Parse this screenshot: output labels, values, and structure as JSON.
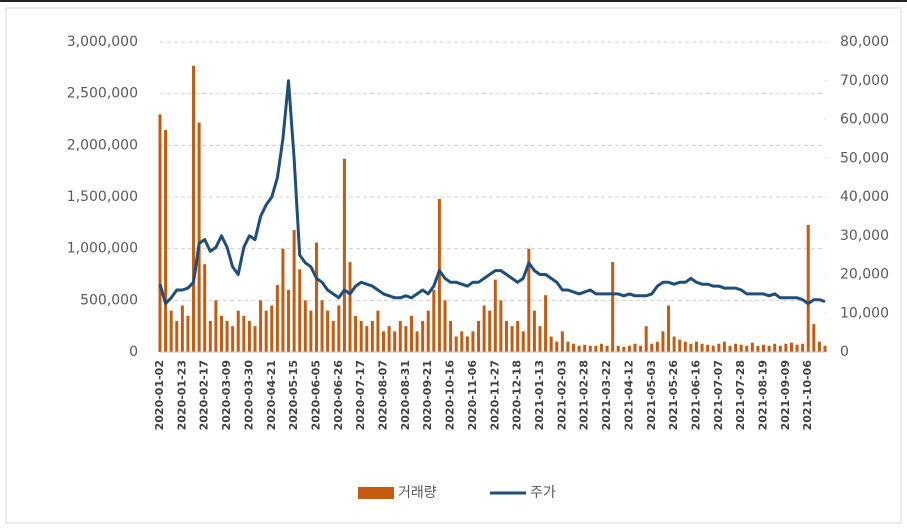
{
  "chart_data": {
    "type": "bar_line",
    "categories": [
      "2020-01-02",
      null,
      null,
      null,
      "2020-01-23",
      null,
      null,
      null,
      "2020-02-17",
      null,
      null,
      null,
      "2020-03-09",
      null,
      null,
      null,
      "2020-03-30",
      null,
      null,
      null,
      "2020-04-21",
      null,
      null,
      null,
      "2020-05-15",
      null,
      null,
      null,
      "2020-06-05",
      null,
      null,
      null,
      "2020-06-26",
      null,
      null,
      null,
      "2020-07-17",
      null,
      null,
      null,
      "2020-08-07",
      null,
      null,
      null,
      "2020-08-31",
      null,
      null,
      null,
      "2020-09-21",
      null,
      null,
      null,
      "2020-10-16",
      null,
      null,
      null,
      "2020-11-06",
      null,
      null,
      null,
      "2020-11-27",
      null,
      null,
      null,
      "2020-12-18",
      null,
      null,
      null,
      "2021-01-13",
      null,
      null,
      null,
      "2021-02-03",
      null,
      null,
      null,
      "2021-02-28",
      null,
      null,
      null,
      "2021-03-22",
      null,
      null,
      null,
      "2021-04-12",
      null,
      null,
      null,
      "2021-05-03",
      null,
      null,
      null,
      "2021-05-26",
      null,
      null,
      null,
      "2021-06-16",
      null,
      null,
      null,
      "2021-07-07",
      null,
      null,
      null,
      "2021-07-28",
      null,
      null,
      null,
      "2021-08-19",
      null,
      null,
      null,
      "2021-09-09",
      null,
      null,
      null,
      "2021-10-06",
      null,
      null,
      null
    ],
    "series": [
      {
        "name": "거래량",
        "color": "#c55a11",
        "axis": "y",
        "values": [
          2300000,
          2150000,
          400000,
          300000,
          450000,
          350000,
          2770000,
          2220000,
          850000,
          300000,
          500000,
          350000,
          300000,
          250000,
          400000,
          350000,
          300000,
          250000,
          500000,
          400000,
          450000,
          650000,
          1000000,
          600000,
          1180000,
          800000,
          500000,
          400000,
          1060000,
          500000,
          400000,
          300000,
          450000,
          1870000,
          870000,
          350000,
          300000,
          250000,
          300000,
          400000,
          200000,
          250000,
          200000,
          300000,
          250000,
          350000,
          200000,
          300000,
          400000,
          600000,
          1480000,
          500000,
          300000,
          150000,
          200000,
          150000,
          200000,
          300000,
          450000,
          400000,
          700000,
          500000,
          300000,
          250000,
          300000,
          200000,
          1000000,
          400000,
          250000,
          550000,
          150000,
          100000,
          200000,
          100000,
          80000,
          60000,
          70000,
          60000,
          60000,
          80000,
          60000,
          870000,
          60000,
          50000,
          60000,
          80000,
          60000,
          250000,
          80000,
          100000,
          200000,
          450000,
          150000,
          120000,
          100000,
          80000,
          100000,
          80000,
          70000,
          60000,
          80000,
          100000,
          60000,
          80000,
          70000,
          60000,
          90000,
          60000,
          70000,
          60000,
          80000,
          60000,
          80000,
          90000,
          70000,
          80000,
          1230000,
          270000,
          100000,
          60000
        ]
      },
      {
        "name": "주가",
        "color": "#1f4e79",
        "axis": "y2",
        "values": [
          17500,
          12500,
          14000,
          16000,
          16000,
          16500,
          18000,
          28000,
          29000,
          26000,
          27000,
          30000,
          27000,
          22000,
          20000,
          27000,
          30000,
          29000,
          35000,
          38000,
          40000,
          45000,
          55000,
          70000,
          50000,
          25000,
          23000,
          22000,
          19000,
          18000,
          16000,
          15000,
          14000,
          16000,
          15000,
          17000,
          18000,
          17500,
          17000,
          16000,
          15000,
          14500,
          14000,
          14000,
          14500,
          14000,
          15000,
          16000,
          15000,
          17000,
          21000,
          19000,
          18000,
          18000,
          17500,
          17000,
          18000,
          18000,
          19000,
          20000,
          21000,
          21000,
          20000,
          19000,
          18000,
          19000,
          23000,
          21000,
          20000,
          20000,
          19000,
          18000,
          16000,
          16000,
          15500,
          15000,
          15500,
          16000,
          15000,
          15000,
          15000,
          15000,
          15000,
          14500,
          15000,
          14500,
          14500,
          14500,
          15000,
          17000,
          18000,
          18000,
          17500,
          18000,
          18000,
          19000,
          18000,
          17500,
          17500,
          17000,
          17000,
          16500,
          16500,
          16500,
          16000,
          15000,
          15000,
          15000,
          15000,
          14500,
          15000,
          14000,
          14000,
          14000,
          14000,
          13500,
          12500,
          13500,
          13500,
          13000
        ]
      }
    ],
    "ylim": [
      0,
      3000000
    ],
    "yticks": [
      0,
      {
        "value": 500000,
        "label": "500,000"
      },
      {
        "value": 1000000,
        "label": "1,000,000"
      },
      {
        "value": 1500000,
        "label": "1,500,000"
      },
      {
        "value": 2000000,
        "label": "2,000,000"
      },
      {
        "value": 2500000,
        "label": "2,500,000"
      },
      {
        "value": 3000000,
        "label": "3,000,000"
      }
    ],
    "y2lim": [
      0,
      80000
    ],
    "y2ticks": [
      0,
      {
        "value": 10000,
        "label": "10,000"
      },
      {
        "value": 20000,
        "label": "20,000"
      },
      {
        "value": 30000,
        "label": "30,000"
      },
      {
        "value": 40000,
        "label": "40,000"
      },
      {
        "value": 50000,
        "label": "50,000"
      },
      {
        "value": 60000,
        "label": "60,000"
      },
      {
        "value": 70000,
        "label": "70,000"
      },
      {
        "value": 80000,
        "label": "80,000"
      }
    ],
    "grid": true,
    "legend": "bottom"
  }
}
